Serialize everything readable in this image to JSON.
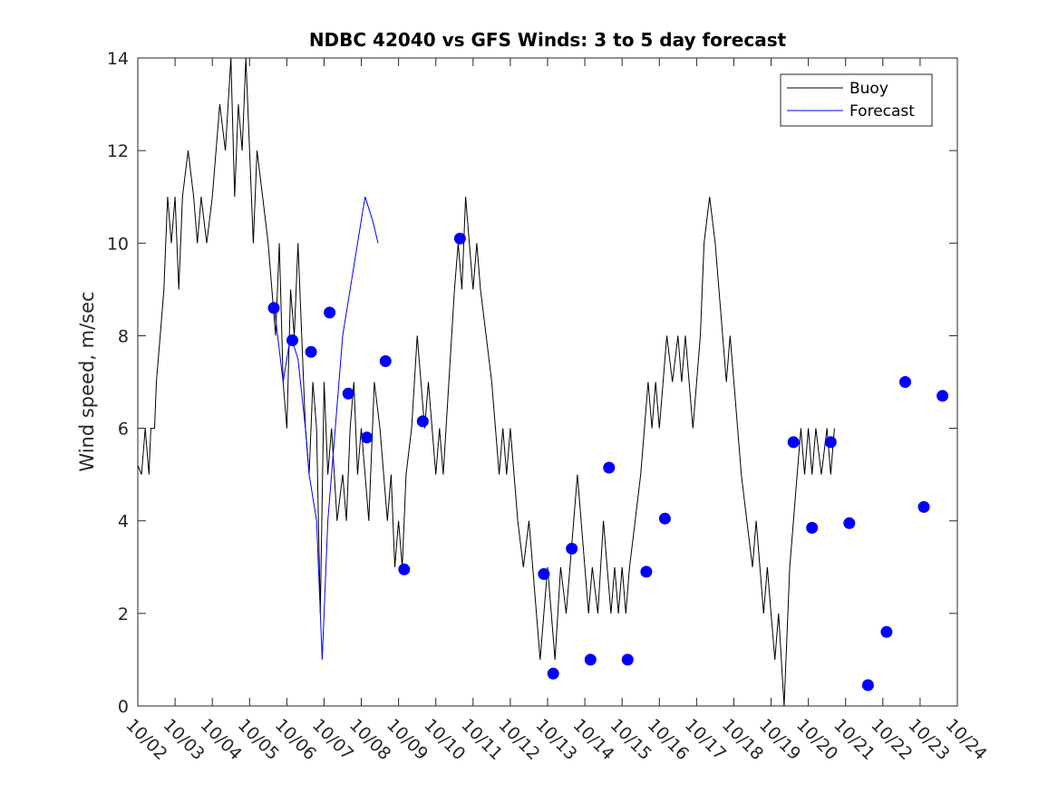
{
  "chart_data": {
    "type": "line",
    "title": "NDBC 42040 vs GFS Winds: 3 to 5 day forecast",
    "xlabel": "",
    "ylabel": "Wind speed, m/sec",
    "xlim": [
      0,
      22
    ],
    "ylim": [
      0,
      14
    ],
    "x_unit": "days since 10/02",
    "x_tick_labels": [
      "10/02",
      "10/03",
      "10/04",
      "10/05",
      "10/06",
      "10/07",
      "10/08",
      "10/09",
      "10/10",
      "10/11",
      "10/12",
      "10/13",
      "10/14",
      "10/15",
      "10/16",
      "10/17",
      "10/18",
      "10/19",
      "10/20",
      "10/21",
      "10/22",
      "10/23",
      "10/24"
    ],
    "y_tick_labels": [
      "0",
      "2",
      "4",
      "6",
      "8",
      "10",
      "12",
      "14"
    ],
    "y_ticks": [
      0,
      2,
      4,
      6,
      8,
      10,
      12,
      14
    ],
    "legend": {
      "position": "top-right",
      "entries": [
        {
          "label": "Buoy",
          "color": "#000000"
        },
        {
          "label": "Forecast",
          "color": "#0000ff"
        }
      ]
    },
    "series": [
      {
        "name": "Buoy",
        "color": "#000000",
        "points": [
          [
            0,
            5.2
          ],
          [
            0.1,
            5
          ],
          [
            0.2,
            6
          ],
          [
            0.3,
            5
          ],
          [
            0.35,
            6
          ],
          [
            0.45,
            6
          ],
          [
            0.5,
            7
          ],
          [
            0.6,
            8
          ],
          [
            0.7,
            9
          ],
          [
            0.75,
            10
          ],
          [
            0.8,
            11
          ],
          [
            0.9,
            10
          ],
          [
            1.0,
            11
          ],
          [
            1.1,
            9
          ],
          [
            1.2,
            11
          ],
          [
            1.35,
            12
          ],
          [
            1.5,
            11
          ],
          [
            1.6,
            10
          ],
          [
            1.7,
            11
          ],
          [
            1.85,
            10
          ],
          [
            2.0,
            11
          ],
          [
            2.1,
            12
          ],
          [
            2.2,
            13
          ],
          [
            2.35,
            12
          ],
          [
            2.5,
            14
          ],
          [
            2.6,
            11
          ],
          [
            2.7,
            13
          ],
          [
            2.8,
            12
          ],
          [
            2.9,
            14
          ],
          [
            3.0,
            12
          ],
          [
            3.1,
            10
          ],
          [
            3.2,
            12
          ],
          [
            3.35,
            11
          ],
          [
            3.5,
            10
          ],
          [
            3.6,
            9
          ],
          [
            3.7,
            8
          ],
          [
            3.8,
            10
          ],
          [
            3.9,
            7
          ],
          [
            4.0,
            6
          ],
          [
            4.1,
            9
          ],
          [
            4.2,
            8
          ],
          [
            4.3,
            10
          ],
          [
            4.4,
            8
          ],
          [
            4.5,
            6
          ],
          [
            4.6,
            5
          ],
          [
            4.7,
            7
          ],
          [
            4.8,
            6
          ],
          [
            4.9,
            2
          ],
          [
            5.0,
            7
          ],
          [
            5.1,
            5
          ],
          [
            5.2,
            6
          ],
          [
            5.35,
            4
          ],
          [
            5.5,
            5
          ],
          [
            5.6,
            4
          ],
          [
            5.7,
            6
          ],
          [
            5.8,
            7
          ],
          [
            5.9,
            5
          ],
          [
            6.0,
            6
          ],
          [
            6.1,
            5
          ],
          [
            6.2,
            4
          ],
          [
            6.35,
            7
          ],
          [
            6.5,
            6
          ],
          [
            6.6,
            5
          ],
          [
            6.7,
            4
          ],
          [
            6.8,
            5
          ],
          [
            6.9,
            3
          ],
          [
            7.0,
            4
          ],
          [
            7.1,
            3
          ],
          [
            7.2,
            5
          ],
          [
            7.35,
            6
          ],
          [
            7.5,
            8
          ],
          [
            7.6,
            7
          ],
          [
            7.7,
            6
          ],
          [
            7.8,
            7
          ],
          [
            7.9,
            6
          ],
          [
            8.0,
            5
          ],
          [
            8.1,
            6
          ],
          [
            8.2,
            5
          ],
          [
            8.35,
            7
          ],
          [
            8.5,
            9
          ],
          [
            8.6,
            10
          ],
          [
            8.7,
            9
          ],
          [
            8.8,
            11
          ],
          [
            8.9,
            10
          ],
          [
            9.0,
            9
          ],
          [
            9.1,
            10
          ],
          [
            9.2,
            9
          ],
          [
            9.35,
            8
          ],
          [
            9.5,
            7
          ],
          [
            9.6,
            6
          ],
          [
            9.7,
            5
          ],
          [
            9.8,
            6
          ],
          [
            9.9,
            5
          ],
          [
            10.0,
            6
          ],
          [
            10.1,
            5
          ],
          [
            10.2,
            4
          ],
          [
            10.35,
            3
          ],
          [
            10.5,
            4
          ],
          [
            10.6,
            3
          ],
          [
            10.7,
            2
          ],
          [
            10.8,
            1
          ],
          [
            10.9,
            2
          ],
          [
            11.0,
            3
          ],
          [
            11.1,
            2
          ],
          [
            11.2,
            1
          ],
          [
            11.35,
            3
          ],
          [
            11.5,
            2
          ],
          [
            11.6,
            3
          ],
          [
            11.7,
            4
          ],
          [
            11.8,
            5
          ],
          [
            11.9,
            4
          ],
          [
            12.0,
            3
          ],
          [
            12.1,
            2
          ],
          [
            12.2,
            3
          ],
          [
            12.35,
            2
          ],
          [
            12.5,
            4
          ],
          [
            12.6,
            3
          ],
          [
            12.7,
            2
          ],
          [
            12.8,
            3
          ],
          [
            12.9,
            2
          ],
          [
            13.0,
            3
          ],
          [
            13.1,
            2
          ],
          [
            13.2,
            3
          ],
          [
            13.35,
            4
          ],
          [
            13.5,
            5
          ],
          [
            13.6,
            6
          ],
          [
            13.7,
            7
          ],
          [
            13.8,
            6
          ],
          [
            13.9,
            7
          ],
          [
            14.0,
            6
          ],
          [
            14.1,
            7
          ],
          [
            14.2,
            8
          ],
          [
            14.35,
            7
          ],
          [
            14.5,
            8
          ],
          [
            14.6,
            7
          ],
          [
            14.7,
            8
          ],
          [
            14.8,
            7
          ],
          [
            14.9,
            6
          ],
          [
            15.0,
            7
          ],
          [
            15.1,
            8
          ],
          [
            15.2,
            10
          ],
          [
            15.35,
            11
          ],
          [
            15.5,
            10
          ],
          [
            15.6,
            9
          ],
          [
            15.7,
            8
          ],
          [
            15.8,
            7
          ],
          [
            15.9,
            8
          ],
          [
            16.0,
            7
          ],
          [
            16.1,
            6
          ],
          [
            16.2,
            5
          ],
          [
            16.35,
            4
          ],
          [
            16.5,
            3
          ],
          [
            16.6,
            4
          ],
          [
            16.7,
            3
          ],
          [
            16.8,
            2
          ],
          [
            16.9,
            3
          ],
          [
            17.0,
            2
          ],
          [
            17.1,
            1
          ],
          [
            17.2,
            2
          ],
          [
            17.35,
            0
          ],
          [
            17.5,
            3
          ],
          [
            17.6,
            4
          ],
          [
            17.7,
            5
          ],
          [
            17.8,
            6
          ],
          [
            17.9,
            5
          ],
          [
            18.0,
            6
          ],
          [
            18.1,
            5
          ],
          [
            18.2,
            6
          ],
          [
            18.35,
            5
          ],
          [
            18.5,
            6
          ],
          [
            18.6,
            5
          ],
          [
            18.7,
            6
          ]
        ]
      },
      {
        "name": "Forecast",
        "color": "#0000ff",
        "points": [
          [
            3.65,
            8.7
          ],
          [
            3.9,
            7
          ],
          [
            4.1,
            8
          ],
          [
            4.3,
            7.5
          ],
          [
            4.5,
            6
          ],
          [
            4.6,
            5
          ],
          [
            4.8,
            4
          ],
          [
            4.95,
            1
          ],
          [
            5.1,
            4
          ],
          [
            5.3,
            6
          ],
          [
            5.5,
            8
          ],
          [
            5.7,
            9
          ],
          [
            5.9,
            10
          ],
          [
            6.1,
            11
          ],
          [
            6.3,
            10.5
          ],
          [
            6.45,
            10
          ]
        ]
      }
    ],
    "markers": {
      "name": "Forecast points",
      "color": "#0000ff",
      "x": [
        3.65,
        4.15,
        4.65,
        5.15,
        5.65,
        6.15,
        6.65,
        7.15,
        7.65,
        8.65,
        10.9,
        11.15,
        11.65,
        12.15,
        12.65,
        13.15,
        13.65,
        14.15,
        17.6,
        18.1,
        18.6,
        19.1,
        19.6,
        20.1,
        20.6,
        21.1,
        21.6
      ],
      "y": [
        8.6,
        7.9,
        7.65,
        8.5,
        6.75,
        5.8,
        7.45,
        2.95,
        6.15,
        10.1,
        2.85,
        0.7,
        3.4,
        1.0,
        5.15,
        1.0,
        2.9,
        4.05,
        5.7,
        3.85,
        5.7,
        3.95,
        0.45,
        1.6,
        7.0,
        4.3,
        6.7
      ]
    }
  }
}
